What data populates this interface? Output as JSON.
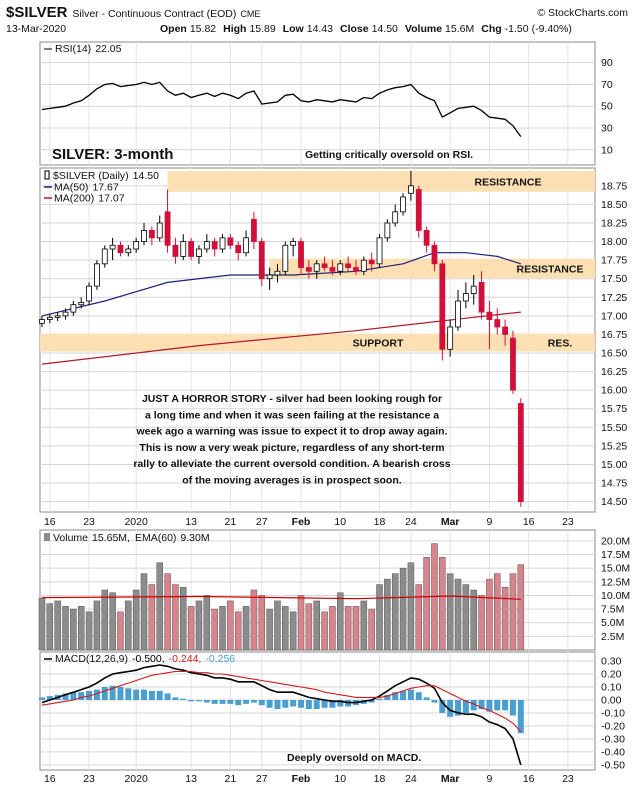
{
  "header": {
    "title": "$SILVER",
    "subtitle": "Silver - Continuous Contract (EOD)",
    "exchange": "CME",
    "source": "© StockCharts.com",
    "date": "13-Mar-2020",
    "stats": [
      {
        "name": "Open",
        "value": 15.82
      },
      {
        "name": "High",
        "value": 15.89
      },
      {
        "name": "Low",
        "value": 14.43
      },
      {
        "name": "Close",
        "value": 14.5,
        "label": "14.50"
      },
      {
        "name": "Volume",
        "value": 15.6,
        "label": "15.6M"
      },
      {
        "name": "Chg",
        "value": -1.5,
        "label": "-1.50",
        "pct": -9.4,
        "pct_label": "(-9.40%)"
      }
    ]
  },
  "chart_data": [
    {
      "type": "line",
      "title": "RSI(14)",
      "ylim": [
        -4,
        109
      ],
      "yticks": [
        90,
        70,
        50,
        30,
        10
      ],
      "grid": true,
      "series": [
        {
          "color": "#000000",
          "legend_value": 22.05,
          "values": [
            47,
            48,
            49,
            50,
            53,
            55,
            60,
            66,
            70,
            71,
            68,
            69,
            70,
            72,
            70,
            72,
            64,
            60,
            62,
            58,
            60,
            62,
            59,
            62,
            60,
            57,
            62,
            64,
            52,
            53,
            54,
            60,
            61,
            55,
            54,
            56,
            55,
            54,
            56,
            55,
            54,
            58,
            57,
            62,
            65,
            67,
            68,
            70,
            62,
            58,
            55,
            40,
            44,
            48,
            49,
            50,
            46,
            40,
            39,
            38,
            32,
            22.05
          ]
        }
      ],
      "annotations": [
        {
          "text": "SILVER: 3-month",
          "color": "#2b3f9e"
        },
        {
          "text": "Getting critically oversold on RSI.",
          "color": "#8b4a0c"
        }
      ]
    },
    {
      "type": "candlestick",
      "name": "$SILVER (Daily)",
      "up_color": "#000000",
      "down_color": "#d0103a",
      "ylim": [
        14.36,
        18.99
      ],
      "grid": true,
      "yticks": [
        {
          "value": 18.75,
          "label": "18.75"
        },
        {
          "value": 18.5,
          "label": "18.50"
        },
        {
          "value": 18.25,
          "label": "18.25"
        },
        {
          "value": 18,
          "label": "18.00"
        },
        {
          "value": 17.75,
          "label": "17.75"
        },
        {
          "value": 17.5,
          "label": "17.50"
        },
        {
          "value": 17.25,
          "label": "17.25"
        },
        {
          "value": 17,
          "label": "17.00"
        },
        {
          "value": 16.75,
          "label": "16.75"
        },
        {
          "value": 16.5,
          "label": "16.50"
        },
        {
          "value": 16.25,
          "label": "16.25"
        },
        {
          "value": 16,
          "label": "16.00"
        },
        {
          "value": 15.75,
          "label": "15.75"
        },
        {
          "value": 15.5,
          "label": "15.50"
        },
        {
          "value": 15.25,
          "label": "15.25"
        },
        {
          "value": 15,
          "label": "15.00"
        },
        {
          "value": 14.75,
          "label": "14.75"
        },
        {
          "value": 14.5,
          "label": "14.50"
        }
      ],
      "xlim": [
        -0.25,
        70.45
      ],
      "xticks": [
        {
          "value": 1,
          "label": "16"
        },
        {
          "value": 6,
          "label": "23"
        },
        {
          "value": 12,
          "label": "2020"
        },
        {
          "value": 19,
          "label": "13"
        },
        {
          "value": 24,
          "label": "21"
        },
        {
          "value": 28,
          "label": "27"
        },
        {
          "value": 33,
          "label": "Feb"
        },
        {
          "value": 38,
          "label": "10"
        },
        {
          "value": 43,
          "label": "18"
        },
        {
          "value": 47,
          "label": "24"
        },
        {
          "value": 52,
          "label": "Mar"
        },
        {
          "value": 57,
          "label": "9"
        },
        {
          "value": 62,
          "label": "16"
        },
        {
          "value": 67,
          "label": "23"
        }
      ],
      "open": [
        16.9,
        16.95,
        16.98,
        17,
        17.05,
        17.15,
        17.2,
        17.4,
        17.7,
        17.9,
        17.95,
        17.85,
        17.9,
        18,
        18.15,
        18.05,
        18.4,
        17.95,
        17.8,
        18,
        17.8,
        17.9,
        18,
        17.9,
        18.05,
        17.95,
        17.85,
        18.3,
        18,
        17.5,
        17.55,
        17.6,
        17.95,
        18,
        17.65,
        17.6,
        17.7,
        17.65,
        17.6,
        17.7,
        17.65,
        17.6,
        17.75,
        17.7,
        18.05,
        18.25,
        18.4,
        18.65,
        18.7,
        18.15,
        17.95,
        17.7,
        16.55,
        16.85,
        17.2,
        17.3,
        17.45,
        17.05,
        16.95,
        16.85,
        16.7,
        15.82
      ],
      "high": [
        17,
        17.02,
        17.05,
        17.1,
        17.2,
        17.25,
        17.45,
        17.75,
        17.95,
        18.05,
        18,
        17.95,
        18.05,
        18.25,
        18.2,
        18.35,
        18.7,
        18.05,
        18.1,
        18.05,
        17.95,
        18.1,
        18.05,
        18.1,
        18.1,
        18,
        18.15,
        18.4,
        18.05,
        17.65,
        17.7,
        18,
        18.05,
        18.05,
        17.75,
        17.75,
        17.8,
        17.75,
        17.75,
        17.8,
        17.75,
        17.8,
        17.85,
        18.1,
        18.3,
        18.5,
        18.65,
        18.95,
        18.75,
        18.2,
        18,
        17.75,
        16.95,
        17.35,
        17.45,
        17.55,
        17.6,
        17.2,
        17.1,
        16.95,
        16.8,
        15.89
      ],
      "low": [
        16.85,
        16.9,
        16.93,
        16.95,
        17,
        17.1,
        17.15,
        17.35,
        17.65,
        17.75,
        17.8,
        17.8,
        17.85,
        17.95,
        17.95,
        18,
        17.85,
        17.7,
        17.75,
        17.75,
        17.7,
        17.85,
        17.8,
        17.85,
        17.9,
        17.75,
        17.8,
        17.9,
        17.4,
        17.35,
        17.45,
        17.55,
        17.8,
        17.55,
        17.5,
        17.5,
        17.6,
        17.55,
        17.55,
        17.6,
        17.55,
        17.55,
        17.6,
        17.65,
        18,
        18.2,
        18.35,
        18.55,
        18.05,
        17.85,
        17.6,
        16.4,
        16.45,
        16.8,
        17.1,
        17.15,
        16.95,
        16.55,
        16.75,
        16.6,
        15.95,
        14.43
      ],
      "close": [
        16.95,
        16.98,
        17,
        17.05,
        17.15,
        17.18,
        17.4,
        17.7,
        17.9,
        17.95,
        17.85,
        17.9,
        18,
        18.15,
        18.05,
        18.25,
        17.95,
        17.8,
        18,
        17.8,
        17.9,
        18,
        17.9,
        18.05,
        17.95,
        17.85,
        18.05,
        18,
        17.5,
        17.55,
        17.6,
        17.95,
        18,
        17.65,
        17.6,
        17.7,
        17.65,
        17.6,
        17.7,
        17.65,
        17.6,
        17.75,
        17.7,
        18.05,
        18.25,
        18.4,
        18.6,
        18.75,
        18.15,
        17.95,
        17.7,
        16.55,
        16.85,
        17.2,
        17.3,
        17.4,
        17.05,
        16.95,
        16.85,
        16.75,
        16,
        14.5
      ],
      "overlays": [
        {
          "name": "MA(50)",
          "color": "#1a237e",
          "legend_value": 17.67,
          "x": [
            0,
            8,
            16,
            24,
            32,
            40,
            46,
            50,
            54,
            58,
            61
          ],
          "values": [
            17,
            17.2,
            17.45,
            17.55,
            17.55,
            17.6,
            17.7,
            17.85,
            17.85,
            17.8,
            17.7
          ]
        },
        {
          "name": "MA(200)",
          "color": "#b2182b",
          "legend_value": 17.07,
          "x": [
            0,
            20,
            40,
            55,
            61
          ],
          "values": [
            16.35,
            16.6,
            16.8,
            16.98,
            17.05
          ]
        }
      ],
      "bands": [
        {
          "range": [
            18.67,
            18.95
          ],
          "from": 16,
          "labels": [
            "RESISTANCE"
          ],
          "color": "#fce0b4"
        },
        {
          "range": [
            17.51,
            17.77
          ],
          "from": 29,
          "labels": [
            "RESISTANCE"
          ],
          "color": "#fce0b4"
        },
        {
          "range": [
            16.52,
            16.76
          ],
          "labels": [
            "SUPPORT",
            "RES."
          ],
          "color": "#fce0b4"
        }
      ],
      "annotation_lines": [
        "JUST A HORROR STORY - silver had been looking rough for",
        "a long time and when it was seen failing at the resistance a",
        "week ago a warning was issue to expect it to drop away again.",
        "This is now a very weak picture, regardless of any short-term",
        "rally to alleviate the current oversold condition. A bearish cross",
        "of the moving averages is in prospect soon."
      ],
      "annotation_color": "#8b4a0c"
    },
    {
      "type": "bar",
      "ylim": [
        0,
        22
      ],
      "grid": true,
      "yticks": [
        {
          "value": 20,
          "label": "20.0M"
        },
        {
          "value": 17.5,
          "label": "17.5M"
        },
        {
          "value": 15,
          "label": "15.0M"
        },
        {
          "value": 12.5,
          "label": "12.5M"
        },
        {
          "value": 10,
          "label": "10.0M"
        },
        {
          "value": 7.5,
          "label": "7.5M"
        },
        {
          "value": 5,
          "label": "5.0M"
        },
        {
          "value": 2.5,
          "label": "2.5M"
        }
      ],
      "series": [
        {
          "name": "Volume",
          "up_color": "#8c8c8c",
          "down_color": "#d9838c",
          "legend_value": {
            "value": 15.65,
            "label": "15.65M,"
          },
          "values": [
            9.5,
            8.5,
            9,
            8,
            7.5,
            8,
            7,
            9,
            11,
            10.5,
            7,
            9,
            11,
            14,
            12,
            16,
            14,
            12,
            11.5,
            8,
            9,
            10,
            7.5,
            8,
            9,
            7,
            8,
            11,
            10,
            7.5,
            9,
            8,
            7,
            10,
            8.5,
            9,
            7,
            8,
            10.5,
            8,
            8,
            9,
            7.5,
            12,
            13,
            14,
            15,
            16,
            12,
            17,
            19.5,
            17,
            14,
            13,
            12,
            11,
            10,
            13,
            14,
            11.5,
            14,
            15.65
          ]
        },
        {
          "name": "EMA(60)",
          "color": "#cc0000",
          "legend_value": {
            "value": 9.3,
            "label": "9.30M"
          },
          "x": [
            0,
            20,
            40,
            52,
            61
          ],
          "values": [
            9.6,
            9.8,
            9.4,
            9.9,
            9.3
          ]
        }
      ]
    },
    {
      "type": "combo",
      "title": "MACD(12,26,9)",
      "ylim": [
        -0.54,
        0.37
      ],
      "grid": true,
      "yticks": [
        {
          "value": 0.3,
          "label": "0.30"
        },
        {
          "value": 0.2,
          "label": "0.20"
        },
        {
          "value": 0.1,
          "label": "0.10"
        },
        {
          "value": 0,
          "label": "0.00"
        },
        {
          "value": -0.1,
          "label": "-0.10"
        },
        {
          "value": -0.2,
          "label": "-0.20"
        },
        {
          "value": -0.3,
          "label": "-0.30"
        },
        {
          "value": -0.4,
          "label": "-0.40"
        },
        {
          "value": -0.5,
          "label": "-0.50"
        }
      ],
      "series": [
        {
          "type": "bar",
          "color": "#4a9fd0",
          "legend_value": {
            "value": -0.256,
            "label": "-0.256"
          },
          "values": [
            0.02,
            0.03,
            0.04,
            0.05,
            0.06,
            0.06,
            0.07,
            0.08,
            0.1,
            0.11,
            0.1,
            0.09,
            0.08,
            0.08,
            0.07,
            0.07,
            0.05,
            0.02,
            0.01,
            -0.01,
            -0.01,
            -0.02,
            -0.03,
            -0.03,
            -0.03,
            -0.04,
            -0.03,
            -0.02,
            -0.04,
            -0.06,
            -0.07,
            -0.06,
            -0.05,
            -0.06,
            -0.07,
            -0.07,
            -0.06,
            -0.06,
            -0.05,
            -0.05,
            -0.04,
            -0.03,
            -0.02,
            0.01,
            0.04,
            0.06,
            0.07,
            0.08,
            0.06,
            0.02,
            -0.02,
            -0.1,
            -0.13,
            -0.12,
            -0.1,
            -0.08,
            -0.07,
            -0.09,
            -0.08,
            -0.08,
            -0.12,
            -0.256
          ]
        },
        {
          "type": "line",
          "color": "#000000",
          "legend_value": {
            "value": -0.5,
            "label": "-0.500,"
          },
          "values": [
            -0.02,
            0,
            0.02,
            0.04,
            0.06,
            0.08,
            0.1,
            0.13,
            0.17,
            0.2,
            0.21,
            0.22,
            0.23,
            0.25,
            0.26,
            0.27,
            0.26,
            0.24,
            0.23,
            0.21,
            0.2,
            0.19,
            0.17,
            0.17,
            0.16,
            0.14,
            0.14,
            0.14,
            0.11,
            0.08,
            0.06,
            0.06,
            0.06,
            0.04,
            0.02,
            0.01,
            0,
            -0.01,
            -0.01,
            -0.02,
            -0.02,
            -0.01,
            0,
            0.03,
            0.07,
            0.11,
            0.14,
            0.17,
            0.16,
            0.13,
            0.09,
            -0.02,
            -0.08,
            -0.1,
            -0.11,
            -0.11,
            -0.13,
            -0.17,
            -0.19,
            -0.22,
            -0.3,
            -0.5
          ]
        },
        {
          "type": "line",
          "color": "#d01c1c",
          "legend_value": {
            "value": -0.244,
            "label": "-0.244,"
          },
          "values": [
            -0.04,
            -0.03,
            -0.02,
            -0.01,
            0,
            0.02,
            0.03,
            0.05,
            0.07,
            0.09,
            0.11,
            0.13,
            0.15,
            0.17,
            0.19,
            0.2,
            0.21,
            0.22,
            0.22,
            0.22,
            0.21,
            0.21,
            0.2,
            0.2,
            0.19,
            0.18,
            0.17,
            0.16,
            0.15,
            0.14,
            0.13,
            0.12,
            0.11,
            0.1,
            0.09,
            0.08,
            0.06,
            0.05,
            0.04,
            0.03,
            0.02,
            0.02,
            0.02,
            0.02,
            0.03,
            0.05,
            0.07,
            0.09,
            0.1,
            0.11,
            0.11,
            0.08,
            0.05,
            0.02,
            -0.01,
            -0.03,
            -0.06,
            -0.08,
            -0.11,
            -0.14,
            -0.18,
            -0.244
          ]
        }
      ],
      "annotations": [
        {
          "text": "Deeply oversold on MACD.",
          "color": "#8b4a0c"
        }
      ]
    }
  ]
}
